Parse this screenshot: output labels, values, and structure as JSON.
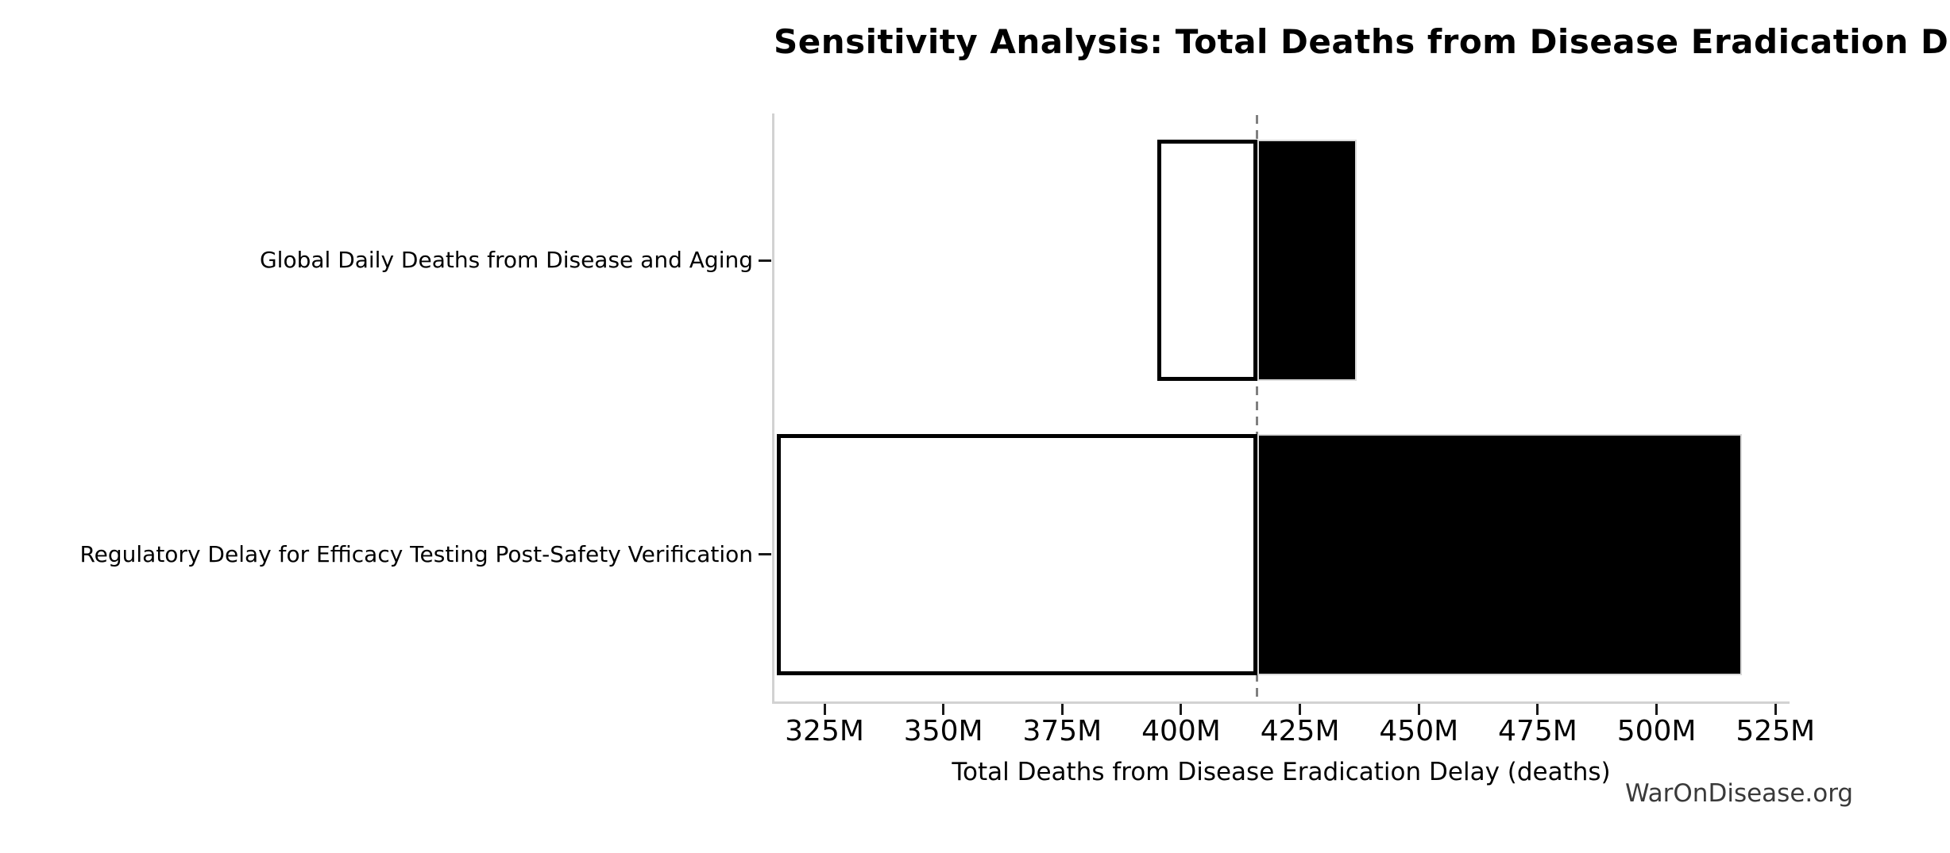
{
  "chart_data": {
    "type": "bar",
    "subtype": "horizontal-tornado",
    "title": "Sensitivity Analysis: Total Deaths from Disease Eradication Delay",
    "xlabel": "Total Deaths from Disease Eradication Delay (deaths)",
    "watermark": "WarOnDisease.org",
    "unit_suffix": "M",
    "baseline_value": 416,
    "baseline_style": "dashed-gray-vertical-line",
    "xlim": [
      314.3,
      527.8
    ],
    "grid": false,
    "legend": null,
    "xticks": [
      {
        "value": 325,
        "label": "325M"
      },
      {
        "value": 350,
        "label": "350M"
      },
      {
        "value": 375,
        "label": "375M"
      },
      {
        "value": 400,
        "label": "400M"
      },
      {
        "value": 425,
        "label": "425M"
      },
      {
        "value": 450,
        "label": "450M"
      },
      {
        "value": 475,
        "label": "475M"
      },
      {
        "value": 500,
        "label": "500M"
      },
      {
        "value": 525,
        "label": "525M"
      }
    ],
    "rows": [
      {
        "category": "Global Daily Deaths from Disease and Aging",
        "low": 395,
        "high": 437,
        "low_label": "395M",
        "high_label": "437M"
      },
      {
        "category": "Regulatory Delay for Efficacy Testing Post-Safety Verification",
        "low": 315,
        "high": 518,
        "low_label": "315M",
        "high_label": "518M"
      }
    ],
    "colors": {
      "low_segment_fill": "#ffffff",
      "low_segment_edge": "#000000",
      "high_segment_fill": "#000000",
      "high_segment_edge": "#d9d9d9",
      "baseline_line": "#808080",
      "spine": "#d2d2d2",
      "tick": "#1a1a1a",
      "text": "#000000",
      "watermark_text": "#3a3a3a"
    }
  }
}
